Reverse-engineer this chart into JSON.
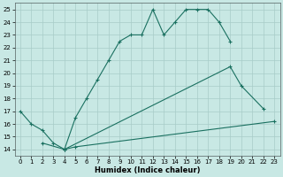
{
  "background_color": "#c8e8e4",
  "grid_color": "#a8ccc8",
  "line_color": "#1a7060",
  "xlabel": "Humidex (Indice chaleur)",
  "xlim": [
    -0.5,
    23.5
  ],
  "ylim": [
    13.5,
    25.5
  ],
  "xticks": [
    0,
    1,
    2,
    3,
    4,
    5,
    6,
    7,
    8,
    9,
    10,
    11,
    12,
    13,
    14,
    15,
    16,
    17,
    18,
    19,
    20,
    21,
    22,
    23
  ],
  "yticks": [
    14,
    15,
    16,
    17,
    18,
    19,
    20,
    21,
    22,
    23,
    24,
    25
  ],
  "series": [
    {
      "x": [
        0,
        1,
        2,
        3,
        4,
        5,
        6,
        7,
        8,
        9,
        10,
        11,
        12,
        13,
        14,
        15,
        16,
        17,
        18,
        19
      ],
      "y": [
        17.0,
        16.0,
        15.5,
        14.5,
        14.0,
        16.5,
        18.0,
        19.5,
        21.0,
        22.5,
        23.0,
        23.0,
        25.0,
        23.0,
        24.0,
        25.0,
        25.0,
        25.0,
        24.0,
        22.5
      ]
    },
    {
      "x": [
        4,
        19,
        20,
        22
      ],
      "y": [
        14.0,
        20.5,
        19.0,
        17.2
      ]
    },
    {
      "x": [
        2,
        4,
        5,
        23
      ],
      "y": [
        14.5,
        14.0,
        14.2,
        16.2
      ]
    }
  ]
}
